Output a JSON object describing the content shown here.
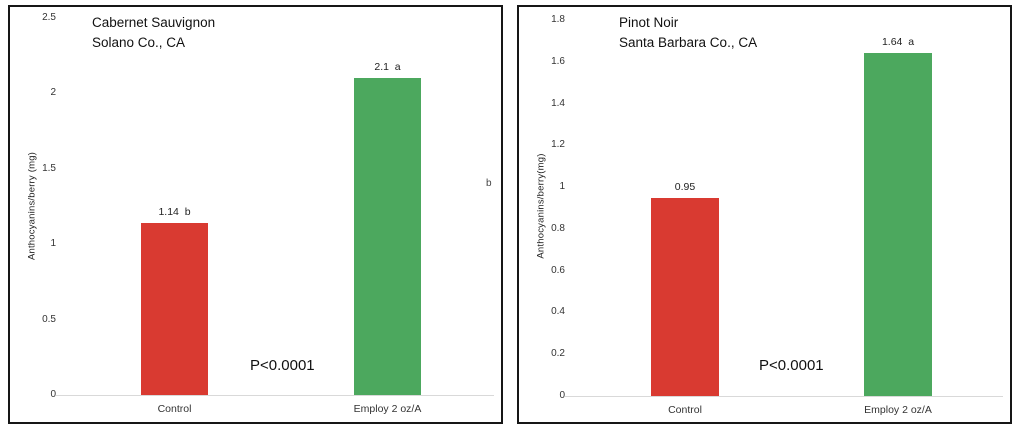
{
  "colors": {
    "control_bar": "#d93a31",
    "treatment_bar": "#4ca85e",
    "baseline": "#d9d9d9",
    "panel_border": "#161616"
  },
  "chart_data": [
    {
      "type": "bar",
      "title": "Cabernet Sauvignon",
      "subtitle": "Solano Co., CA",
      "ylabel": "Anthocyanins/berry (mg)",
      "xlabel": "",
      "ylim": [
        0,
        2.5
      ],
      "yticks": [
        0,
        0.5,
        1,
        1.5,
        2,
        2.5
      ],
      "ytick_labels": [
        "0",
        "0.5",
        "1",
        "1.5",
        "2",
        "2.5"
      ],
      "categories": [
        "Control",
        "Employ 2 oz/A"
      ],
      "values": [
        1.14,
        2.1
      ],
      "bar_labels": [
        "1.14  b",
        "2.1  a"
      ],
      "bar_colors": [
        "#d93a31",
        "#4ca85e"
      ],
      "annotation": "P<0.0001",
      "stray_label": "b",
      "legend": "none",
      "grid": "off"
    },
    {
      "type": "bar",
      "title": "Pinot Noir",
      "subtitle": "Santa Barbara Co., CA",
      "ylabel": "Anthocyanins/berry(mg)",
      "xlabel": "",
      "ylim": [
        0,
        1.8
      ],
      "yticks": [
        0,
        0.2,
        0.4,
        0.6,
        0.8,
        1,
        1.2,
        1.4,
        1.6,
        1.8
      ],
      "ytick_labels": [
        "0",
        "0.2",
        "0.4",
        "0.6",
        "0.8",
        "1",
        "1.2",
        "1.4",
        "1.6",
        "1.8"
      ],
      "categories": [
        "Control",
        "Employ 2 oz/A"
      ],
      "values": [
        0.95,
        1.64
      ],
      "bar_labels": [
        "0.95",
        "1.64  a"
      ],
      "bar_colors": [
        "#d93a31",
        "#4ca85e"
      ],
      "annotation": "P<0.0001",
      "stray_label": "",
      "legend": "none",
      "grid": "off"
    }
  ]
}
